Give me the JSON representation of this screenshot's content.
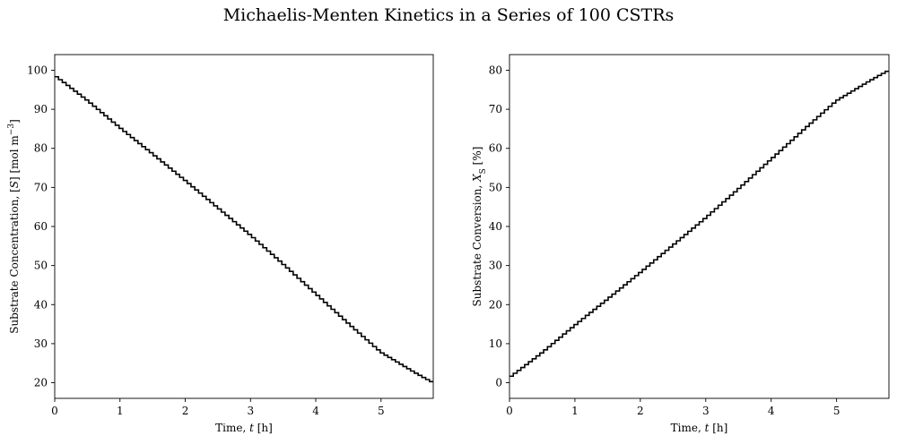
{
  "figure": {
    "title": "Michaelis-Menten Kinetics in a Series of 100 CSTRs"
  },
  "chart_data": [
    {
      "type": "line",
      "subtype": "step",
      "n_tanks": 100,
      "title": "",
      "xlabel_parts": [
        "Time, ",
        "t",
        " [h]"
      ],
      "ylabel_parts": [
        "Substrate Concentration, [",
        "S",
        "] [mol m",
        "−3",
        "]"
      ],
      "xlim": [
        0,
        5.8
      ],
      "ylim": [
        16,
        104
      ],
      "xticks": [
        0,
        1,
        2,
        3,
        4,
        5
      ],
      "yticks": [
        20,
        30,
        40,
        50,
        60,
        70,
        80,
        90,
        100
      ],
      "grid": false,
      "legend": "none",
      "line_color": "#000000",
      "series": [
        {
          "x": [
            0,
            0.5,
            1,
            1.5,
            2,
            2.5,
            3,
            3.5,
            4,
            4.5,
            5,
            5.5,
            5.8
          ],
          "values": [
            98.7,
            92.3,
            85.3,
            78.6,
            71.8,
            64.8,
            57.8,
            50.4,
            42.8,
            35.2,
            27.8,
            22.8,
            20
          ]
        }
      ]
    },
    {
      "type": "line",
      "subtype": "step",
      "n_tanks": 100,
      "title": "",
      "xlabel_parts": [
        "Time, ",
        "t",
        " [h]"
      ],
      "ylabel_parts": [
        "Substrate Conversion, ",
        "X",
        "S",
        " [%]"
      ],
      "xlim": [
        0,
        5.8
      ],
      "ylim": [
        -4,
        84
      ],
      "xticks": [
        0,
        1,
        2,
        3,
        4,
        5
      ],
      "yticks": [
        0,
        10,
        20,
        30,
        40,
        50,
        60,
        70,
        80
      ],
      "grid": false,
      "legend": "none",
      "line_color": "#000000",
      "series": [
        {
          "x": [
            0,
            0.5,
            1,
            1.5,
            2,
            2.5,
            3,
            3.5,
            4,
            4.5,
            5,
            5.5,
            5.8
          ],
          "values": [
            1.3,
            7.7,
            14.7,
            21.4,
            28.2,
            35.2,
            42.2,
            49.6,
            57.2,
            64.8,
            72.2,
            77.2,
            80
          ]
        }
      ]
    }
  ]
}
